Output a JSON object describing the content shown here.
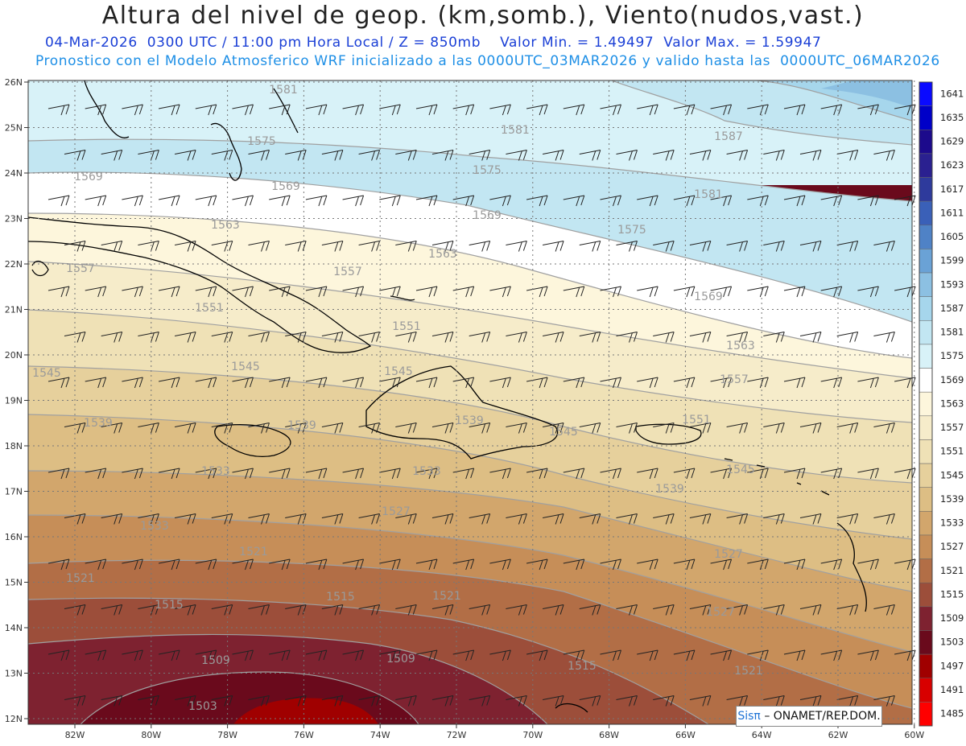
{
  "header": {
    "title": "Altura del nivel de geop. (km,somb.), Viento(nudos,vast.)",
    "line1": "04-Mar-2026  0300 UTC / 11:00 pm Hora Local / Z = 850mb    Valor Min. = 1.49497  Valor Max. = 1.59947",
    "line2": "Pronostico con el Modelo Atmosferico WRF inicializado a las 0000UTC_03MAR2026 y valido hasta las  0000UTC_06MAR2026"
  },
  "map": {
    "lat_labels": [
      "26N",
      "25N",
      "24N",
      "23N",
      "22N",
      "21N",
      "20N",
      "19N",
      "18N",
      "17N",
      "16N",
      "15N",
      "14N",
      "13N",
      "12N"
    ],
    "lon_labels": [
      "82W",
      "80W",
      "78W",
      "76W",
      "74W",
      "72W",
      "70W",
      "68W",
      "66W",
      "64W",
      "62W",
      "60W"
    ],
    "contour_labels": [
      {
        "text": "1581"
      },
      {
        "text": "1581"
      },
      {
        "text": "1587"
      },
      {
        "text": "1575"
      },
      {
        "text": "1575"
      },
      {
        "text": "1569"
      },
      {
        "text": "1569"
      },
      {
        "text": "1569"
      },
      {
        "text": "1581"
      },
      {
        "text": "1575"
      },
      {
        "text": "1563"
      },
      {
        "text": "1563"
      },
      {
        "text": "1569"
      },
      {
        "text": "1557"
      },
      {
        "text": "1557"
      },
      {
        "text": "1563"
      },
      {
        "text": "1551"
      },
      {
        "text": "1551"
      },
      {
        "text": "1557"
      },
      {
        "text": "1545"
      },
      {
        "text": "1545"
      },
      {
        "text": "1545"
      },
      {
        "text": "1551"
      },
      {
        "text": "1539"
      },
      {
        "text": "1539"
      },
      {
        "text": "1539"
      },
      {
        "text": "1545"
      },
      {
        "text": "1545"
      },
      {
        "text": "1533"
      },
      {
        "text": "1533"
      },
      {
        "text": "1539"
      },
      {
        "text": "1527"
      },
      {
        "text": "1533"
      },
      {
        "text": "1527"
      },
      {
        "text": "1521"
      },
      {
        "text": "1521"
      },
      {
        "text": "1521"
      },
      {
        "text": "1515"
      },
      {
        "text": "1515"
      },
      {
        "text": "1527"
      },
      {
        "text": "1509"
      },
      {
        "text": "1509"
      },
      {
        "text": "1515"
      },
      {
        "text": "1521"
      },
      {
        "text": "1503"
      }
    ]
  },
  "colorbar": {
    "labels": [
      "1641",
      "1635",
      "1629",
      "1623",
      "1617",
      "1611",
      "1605",
      "1599",
      "1593",
      "1587",
      "1581",
      "1575",
      "1569",
      "1563",
      "1557",
      "1551",
      "1545",
      "1539",
      "1533",
      "1527",
      "1521",
      "1515",
      "1509",
      "1503",
      "1497",
      "1491",
      "1485"
    ],
    "colors": [
      "#0a0aff",
      "#0000c8",
      "#1c0a8c",
      "#2a2090",
      "#2e3a9c",
      "#3a60b8",
      "#4f82c6",
      "#6aa2d6",
      "#8cc0e2",
      "#a6d6ec",
      "#c2e6f2",
      "#d8f2f8",
      "#ffffff",
      "#fdf6dc",
      "#f6ecca",
      "#efe1b6",
      "#e6d09c",
      "#ddbe84",
      "#d2a66c",
      "#c68e58",
      "#b26e46",
      "#9c4e3a",
      "#7e2230",
      "#6a0a1c",
      "#a00000",
      "#d80000",
      "#ff0000"
    ]
  },
  "credit": {
    "sis": "Sisπ",
    "rest": "– ONAMET/REP.DOM."
  }
}
